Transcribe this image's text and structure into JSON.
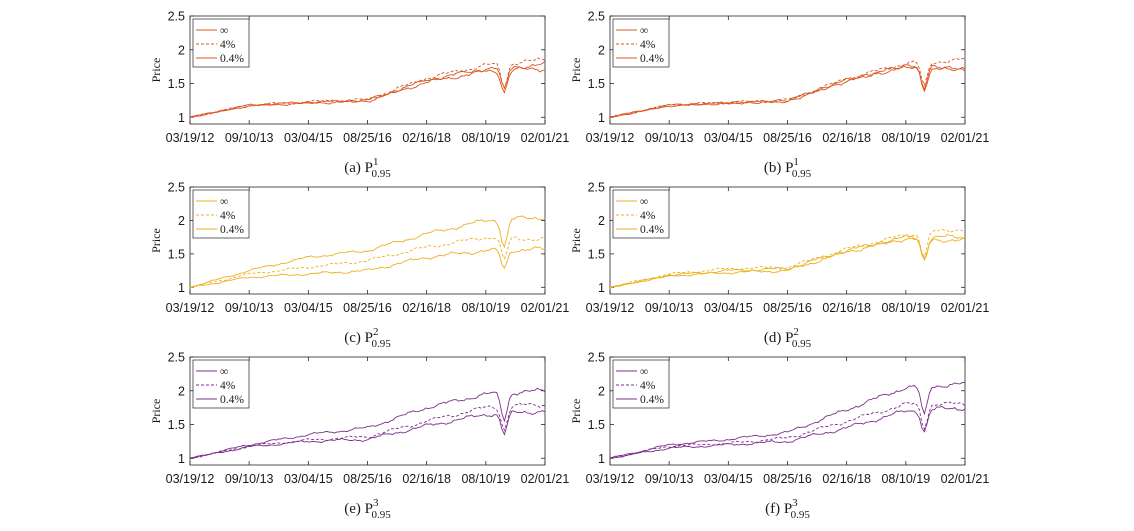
{
  "chart_data": [
    {
      "type": "line",
      "color": "#d9541f",
      "caption": {
        "label": "(a) P",
        "superscript": "1",
        "subscript": "0.95"
      },
      "ylabel": "Price",
      "ylim": [
        0.9,
        2.5
      ],
      "yticks": [
        "1",
        "1.5",
        "2",
        "2.5"
      ],
      "x": [
        "03/19/12",
        "09/10/13",
        "03/04/15",
        "08/25/16",
        "02/16/18",
        "08/10/19",
        "02/01/21"
      ],
      "legend_position": "top-left",
      "series": [
        {
          "name": "∞",
          "dash": "solid",
          "values": [
            1.0,
            1.18,
            1.22,
            1.25,
            1.55,
            1.72,
            1.78
          ]
        },
        {
          "name": "4%",
          "dash": "dashed",
          "values": [
            1.0,
            1.18,
            1.23,
            1.26,
            1.58,
            1.77,
            1.85
          ]
        },
        {
          "name": "0.4%",
          "dash": "solid",
          "values": [
            1.0,
            1.17,
            1.21,
            1.24,
            1.52,
            1.68,
            1.72
          ]
        }
      ]
    },
    {
      "type": "line",
      "color": "#d9541f",
      "caption": {
        "label": "(b) P",
        "superscript": "1",
        "subscript": "0.95"
      },
      "ylabel": "Price",
      "ylim": [
        0.9,
        2.5
      ],
      "yticks": [
        "1",
        "1.5",
        "2",
        "2.5"
      ],
      "x": [
        "03/19/12",
        "09/10/13",
        "03/04/15",
        "08/25/16",
        "02/16/18",
        "08/10/19",
        "02/01/21"
      ],
      "legend_position": "top-left",
      "series": [
        {
          "name": "∞",
          "dash": "solid",
          "values": [
            1.0,
            1.18,
            1.21,
            1.24,
            1.55,
            1.76,
            1.72
          ]
        },
        {
          "name": "4%",
          "dash": "dashed",
          "values": [
            1.0,
            1.18,
            1.22,
            1.25,
            1.57,
            1.8,
            1.85
          ]
        },
        {
          "name": "0.4%",
          "dash": "solid",
          "values": [
            1.0,
            1.17,
            1.21,
            1.24,
            1.54,
            1.75,
            1.7
          ]
        }
      ]
    },
    {
      "type": "line",
      "color": "#edb120",
      "caption": {
        "label": "(c) P",
        "superscript": "2",
        "subscript": "0.95"
      },
      "ylabel": "Price",
      "ylim": [
        0.9,
        2.5
      ],
      "yticks": [
        "1",
        "1.5",
        "2",
        "2.5"
      ],
      "x": [
        "03/19/12",
        "09/10/13",
        "03/04/15",
        "08/25/16",
        "02/16/18",
        "08/10/19",
        "02/01/21"
      ],
      "legend_position": "top-left",
      "series": [
        {
          "name": "∞",
          "dash": "solid",
          "values": [
            1.0,
            1.25,
            1.45,
            1.55,
            1.8,
            2.0,
            2.05
          ]
        },
        {
          "name": "4%",
          "dash": "dashed",
          "values": [
            1.0,
            1.2,
            1.3,
            1.4,
            1.6,
            1.75,
            1.72
          ]
        },
        {
          "name": "0.4%",
          "dash": "solid",
          "values": [
            1.0,
            1.15,
            1.2,
            1.25,
            1.45,
            1.55,
            1.57
          ]
        }
      ]
    },
    {
      "type": "line",
      "color": "#edb120",
      "caption": {
        "label": "(d) P",
        "superscript": "2",
        "subscript": "0.95"
      },
      "ylabel": "Price",
      "ylim": [
        0.9,
        2.5
      ],
      "yticks": [
        "1",
        "1.5",
        "2",
        "2.5"
      ],
      "x": [
        "03/19/12",
        "09/10/13",
        "03/04/15",
        "08/25/16",
        "02/16/18",
        "08/10/19",
        "02/01/21"
      ],
      "legend_position": "top-left",
      "series": [
        {
          "name": "∞",
          "dash": "solid",
          "values": [
            1.0,
            1.18,
            1.25,
            1.28,
            1.55,
            1.75,
            1.75
          ]
        },
        {
          "name": "4%",
          "dash": "dashed",
          "values": [
            1.0,
            1.2,
            1.28,
            1.3,
            1.57,
            1.78,
            1.88
          ]
        },
        {
          "name": "0.4%",
          "dash": "solid",
          "values": [
            1.0,
            1.17,
            1.22,
            1.25,
            1.53,
            1.73,
            1.7
          ]
        }
      ]
    },
    {
      "type": "line",
      "color": "#7e2f8e",
      "caption": {
        "label": "(e) P",
        "superscript": "3",
        "subscript": "0.95"
      },
      "ylabel": "Price",
      "ylim": [
        0.9,
        2.5
      ],
      "yticks": [
        "1",
        "1.5",
        "2",
        "2.5"
      ],
      "x": [
        "03/19/12",
        "09/10/13",
        "03/04/15",
        "08/25/16",
        "02/16/18",
        "08/10/19",
        "02/01/21"
      ],
      "legend_position": "top-left",
      "series": [
        {
          "name": "∞",
          "dash": "solid",
          "values": [
            1.0,
            1.2,
            1.35,
            1.45,
            1.75,
            1.95,
            2.0
          ]
        },
        {
          "name": "4%",
          "dash": "dashed",
          "values": [
            1.0,
            1.18,
            1.27,
            1.32,
            1.55,
            1.75,
            1.8
          ]
        },
        {
          "name": "0.4%",
          "dash": "solid",
          "values": [
            1.0,
            1.17,
            1.25,
            1.28,
            1.48,
            1.65,
            1.7
          ]
        }
      ]
    },
    {
      "type": "line",
      "color": "#7e2f8e",
      "caption": {
        "label": "(f) P",
        "superscript": "3",
        "subscript": "0.95"
      },
      "ylabel": "Price",
      "ylim": [
        0.9,
        2.5
      ],
      "yticks": [
        "1",
        "1.5",
        "2",
        "2.5"
      ],
      "x": [
        "03/19/12",
        "09/10/13",
        "03/04/15",
        "08/25/16",
        "02/16/18",
        "08/10/19",
        "02/01/21"
      ],
      "legend_position": "top-left",
      "series": [
        {
          "name": "∞",
          "dash": "solid",
          "values": [
            1.0,
            1.2,
            1.28,
            1.38,
            1.72,
            2.05,
            2.1
          ]
        },
        {
          "name": "4%",
          "dash": "dashed",
          "values": [
            1.0,
            1.18,
            1.22,
            1.3,
            1.55,
            1.8,
            1.8
          ]
        },
        {
          "name": "0.4%",
          "dash": "solid",
          "values": [
            1.0,
            1.15,
            1.2,
            1.25,
            1.45,
            1.7,
            1.75
          ]
        }
      ]
    }
  ]
}
